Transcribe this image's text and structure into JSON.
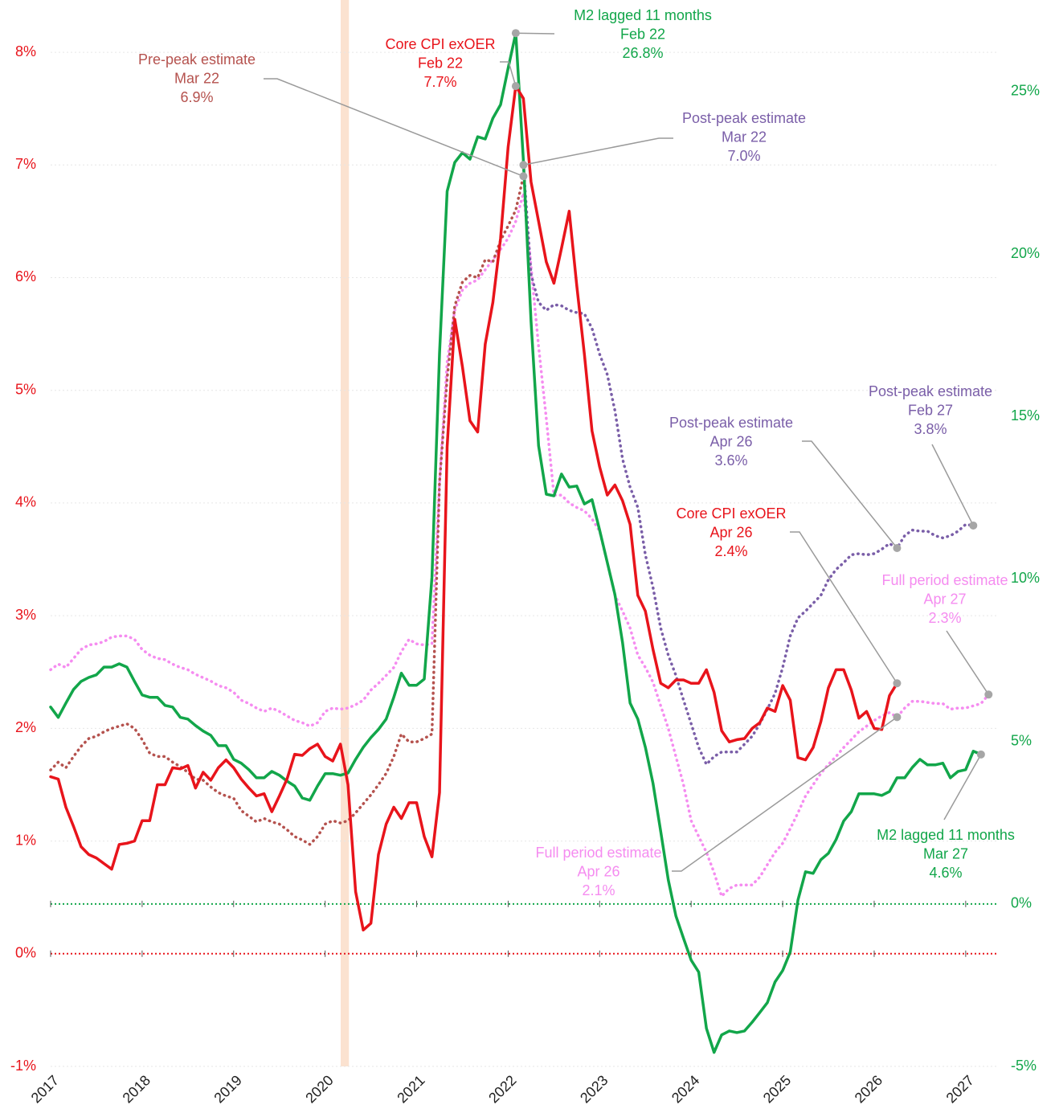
{
  "chart_data": {
    "type": "line",
    "x": [
      2017,
      2017.083,
      2017.167,
      2017.25,
      2017.333,
      2017.417,
      2017.5,
      2017.583,
      2017.667,
      2017.75,
      2017.833,
      2017.917,
      2018,
      2018.083,
      2018.167,
      2018.25,
      2018.333,
      2018.417,
      2018.5,
      2018.583,
      2018.667,
      2018.75,
      2018.833,
      2018.917,
      2019,
      2019.083,
      2019.167,
      2019.25,
      2019.333,
      2019.417,
      2019.5,
      2019.583,
      2019.667,
      2019.75,
      2019.833,
      2019.917,
      2020,
      2020.083,
      2020.167,
      2020.25,
      2020.333,
      2020.417,
      2020.5,
      2020.583,
      2020.667,
      2020.75,
      2020.833,
      2020.917,
      2021,
      2021.083,
      2021.167,
      2021.25,
      2021.333,
      2021.417,
      2021.5,
      2021.583,
      2021.667,
      2021.75,
      2021.833,
      2021.917,
      2022,
      2022.083,
      2022.167,
      2022.25,
      2022.333,
      2022.417,
      2022.5,
      2022.583,
      2022.667,
      2022.75,
      2022.833,
      2022.917,
      2023,
      2023.083,
      2023.167,
      2023.25,
      2023.333,
      2023.417,
      2023.5,
      2023.583,
      2023.667,
      2023.75,
      2023.833,
      2023.917,
      2024,
      2024.083,
      2024.167,
      2024.25,
      2024.333,
      2024.417,
      2024.5,
      2024.583,
      2024.667,
      2024.75,
      2024.833,
      2024.917,
      2025,
      2025.083,
      2025.167,
      2025.25,
      2025.333,
      2025.417,
      2025.5,
      2025.583,
      2025.667,
      2025.75,
      2025.833,
      2025.917,
      2026,
      2026.083,
      2026.167,
      2026.25,
      2026.333,
      2026.417,
      2026.5,
      2026.583,
      2026.667,
      2026.75,
      2026.833,
      2026.917,
      2027,
      2027.083,
      2027.167,
      2027.25
    ],
    "xlim": [
      2017,
      2027.3
    ],
    "xticks": [
      2017,
      2018,
      2019,
      2020,
      2021,
      2022,
      2023,
      2024,
      2025,
      2026,
      2027
    ],
    "ylim": [
      -1,
      8.3
    ],
    "yticks": [
      {
        "value": -1,
        "label": "-1%"
      },
      {
        "value": 0,
        "label": "0%"
      },
      {
        "value": 1,
        "label": "1%"
      },
      {
        "value": 2,
        "label": "2%"
      },
      {
        "value": 3,
        "label": "3%"
      },
      {
        "value": 4,
        "label": "4%"
      },
      {
        "value": 5,
        "label": "5%"
      },
      {
        "value": 6,
        "label": "6%"
      },
      {
        "value": 7,
        "label": "7%"
      },
      {
        "value": 8,
        "label": "8%"
      }
    ],
    "y2lim": [
      -5,
      27.25
    ],
    "y2ticks": [
      {
        "value": -5,
        "label": "-5%"
      },
      {
        "value": 0,
        "label": "0%"
      },
      {
        "value": 5,
        "label": "5%"
      },
      {
        "value": 10,
        "label": "10%"
      },
      {
        "value": 15,
        "label": "15%"
      },
      {
        "value": 20,
        "label": "20%"
      },
      {
        "value": 25,
        "label": "25%"
      }
    ],
    "ycolor": "#e8141b",
    "y2color": "#12a64a",
    "grid": true,
    "zero_lines": true,
    "shaded_xrange": [
      2020.17,
      2020.26
    ],
    "shaded_color": "#fbe2d0",
    "series": [
      {
        "color": "#f58cf0",
        "style": "dotted",
        "values": [
          2.52,
          2.57,
          2.54,
          2.62,
          2.7,
          2.74,
          2.75,
          2.77,
          2.81,
          2.82,
          2.82,
          2.79,
          2.7,
          2.65,
          2.62,
          2.61,
          2.57,
          2.54,
          2.52,
          2.48,
          2.45,
          2.42,
          2.38,
          2.36,
          2.32,
          2.25,
          2.22,
          2.18,
          2.15,
          2.18,
          2.15,
          2.11,
          2.07,
          2.05,
          2.02,
          2.05,
          2.15,
          2.18,
          2.17,
          2.18,
          2.21,
          2.25,
          2.34,
          2.4,
          2.47,
          2.54,
          2.68,
          2.79,
          2.75,
          2.74,
          2.75,
          4.18,
          5.25,
          5.71,
          5.89,
          5.95,
          5.98,
          6.07,
          6.16,
          6.25,
          6.35,
          6.5,
          6.75,
          6.1,
          5.39,
          4.75,
          4.07,
          4.07,
          4.0,
          3.96,
          3.93,
          3.86,
          3.75,
          3.47,
          3.18,
          3.04,
          2.89,
          2.65,
          2.54,
          2.41,
          2.2,
          2.0,
          1.75,
          1.5,
          1.18,
          1.04,
          0.9,
          0.72,
          0.51,
          0.58,
          0.61,
          0.61,
          0.61,
          0.68,
          0.79,
          0.9,
          0.98,
          1.11,
          1.25,
          1.4,
          1.5,
          1.6,
          1.68,
          1.75,
          1.83,
          1.9,
          1.97,
          2.02,
          2.07,
          2.11,
          2.14,
          2.1,
          2.18,
          2.24,
          2.24,
          2.23,
          2.22,
          2.22,
          2.17,
          2.18,
          2.18,
          2.2,
          2.22,
          2.3
        ]
      },
      {
        "color": "#b5524e",
        "style": "dotted",
        "values": [
          1.63,
          1.7,
          1.65,
          1.75,
          1.84,
          1.91,
          1.93,
          1.97,
          2.0,
          2.02,
          2.04,
          2.0,
          1.9,
          1.78,
          1.75,
          1.75,
          1.7,
          1.66,
          1.61,
          1.55,
          1.54,
          1.48,
          1.43,
          1.4,
          1.38,
          1.27,
          1.22,
          1.17,
          1.2,
          1.17,
          1.15,
          1.1,
          1.04,
          1.01,
          0.97,
          1.04,
          1.15,
          1.18,
          1.16,
          1.18,
          1.25,
          1.33,
          1.41,
          1.5,
          1.6,
          1.75,
          1.95,
          1.88,
          1.88,
          1.91,
          1.95,
          4.18,
          5.11,
          5.75,
          5.96,
          6.02,
          6.0,
          6.16,
          6.14,
          6.33,
          6.46,
          6.6,
          6.9,
          null,
          null,
          null,
          null,
          null,
          null,
          null,
          null,
          null,
          null,
          null,
          null,
          null,
          null,
          null,
          null,
          null,
          null,
          null,
          null,
          null,
          null,
          null,
          null,
          null,
          null,
          null,
          null,
          null,
          null,
          null,
          null,
          null,
          null,
          null,
          null,
          null,
          null,
          null,
          null,
          null,
          null,
          null,
          null,
          null,
          null,
          null,
          null,
          null,
          null,
          null,
          null,
          null,
          null,
          null,
          null,
          null,
          null,
          null,
          null,
          null
        ]
      },
      {
        "color": "#7a5ea8",
        "style": "dotted",
        "values": [
          null,
          null,
          null,
          null,
          null,
          null,
          null,
          null,
          null,
          null,
          null,
          null,
          null,
          null,
          null,
          null,
          null,
          null,
          null,
          null,
          null,
          null,
          null,
          null,
          null,
          null,
          null,
          null,
          null,
          null,
          null,
          null,
          null,
          null,
          null,
          null,
          null,
          null,
          null,
          null,
          null,
          null,
          null,
          null,
          null,
          null,
          null,
          null,
          null,
          null,
          null,
          null,
          null,
          null,
          null,
          null,
          null,
          null,
          null,
          null,
          null,
          null,
          7.0,
          6.03,
          5.78,
          5.71,
          5.76,
          5.75,
          5.71,
          5.69,
          5.68,
          5.55,
          5.32,
          5.14,
          4.82,
          4.39,
          4.14,
          3.96,
          3.54,
          3.25,
          2.89,
          2.65,
          2.47,
          2.25,
          2.04,
          1.83,
          1.68,
          1.75,
          1.79,
          1.79,
          1.79,
          1.86,
          1.93,
          2.04,
          2.17,
          2.31,
          2.54,
          2.82,
          2.98,
          3.04,
          3.11,
          3.18,
          3.32,
          3.41,
          3.47,
          3.54,
          3.55,
          3.54,
          3.55,
          3.59,
          3.64,
          3.6,
          3.71,
          3.76,
          3.75,
          3.75,
          3.71,
          3.69,
          3.71,
          3.75,
          3.81,
          3.8,
          null,
          null
        ]
      },
      {
        "color": "#12a64a",
        "style": "solid",
        "axis": "y2",
        "values": [
          6.06,
          5.74,
          6.18,
          6.6,
          6.85,
          6.97,
          7.05,
          7.29,
          7.29,
          7.39,
          7.29,
          6.85,
          6.43,
          6.36,
          6.36,
          6.11,
          6.06,
          5.74,
          5.69,
          5.49,
          5.32,
          5.19,
          4.87,
          4.87,
          4.45,
          4.33,
          4.13,
          3.88,
          3.88,
          4.08,
          3.96,
          3.78,
          3.63,
          3.26,
          3.19,
          3.63,
          4.01,
          4.01,
          3.96,
          4.03,
          4.45,
          4.82,
          5.12,
          5.37,
          5.69,
          6.36,
          7.1,
          6.73,
          6.73,
          6.92,
          10.06,
          16.94,
          21.93,
          22.82,
          23.12,
          22.92,
          23.61,
          23.54,
          24.18,
          24.6,
          25.72,
          26.8,
          22.87,
          17.93,
          14.1,
          12.61,
          12.56,
          13.23,
          12.83,
          12.86,
          12.31,
          12.44,
          11.5,
          10.51,
          9.52,
          8.04,
          6.18,
          5.69,
          4.82,
          3.71,
          2.23,
          0.74,
          -0.37,
          -1.06,
          -1.73,
          -2.1,
          -3.83,
          -4.57,
          -4.03,
          -3.91,
          -3.96,
          -3.91,
          -3.64,
          -3.34,
          -3.04,
          -2.4,
          -2.05,
          -1.48,
          0.12,
          0.99,
          0.94,
          1.36,
          1.56,
          1.98,
          2.55,
          2.84,
          3.39,
          3.39,
          3.39,
          3.34,
          3.46,
          3.88,
          3.88,
          4.2,
          4.45,
          4.28,
          4.28,
          4.33,
          3.88,
          4.08,
          4.13,
          4.7,
          4.6,
          null
        ]
      },
      {
        "color": "#e8141b",
        "style": "solid",
        "values": [
          1.57,
          1.55,
          1.3,
          1.13,
          0.95,
          0.88,
          0.85,
          0.8,
          0.75,
          0.97,
          0.98,
          1.0,
          1.18,
          1.18,
          1.5,
          1.5,
          1.65,
          1.64,
          1.67,
          1.47,
          1.61,
          1.54,
          1.65,
          1.72,
          1.65,
          1.55,
          1.47,
          1.4,
          1.42,
          1.26,
          1.4,
          1.55,
          1.77,
          1.76,
          1.82,
          1.86,
          1.75,
          1.71,
          1.86,
          1.5,
          0.55,
          0.21,
          0.27,
          0.88,
          1.15,
          1.3,
          1.2,
          1.34,
          1.34,
          1.04,
          0.86,
          1.43,
          4.5,
          5.63,
          5.21,
          4.73,
          4.63,
          5.41,
          5.78,
          6.35,
          7.16,
          7.7,
          7.59,
          6.85,
          6.5,
          6.14,
          5.95,
          6.26,
          6.59,
          5.93,
          5.32,
          4.64,
          4.32,
          4.07,
          4.16,
          4.02,
          3.81,
          3.18,
          3.04,
          2.7,
          2.4,
          2.36,
          2.43,
          2.43,
          2.4,
          2.4,
          2.52,
          2.32,
          1.98,
          1.88,
          1.9,
          1.91,
          2.0,
          2.05,
          2.18,
          2.15,
          2.38,
          2.25,
          1.74,
          1.72,
          1.83,
          2.06,
          2.36,
          2.52,
          2.52,
          2.34,
          2.09,
          2.15,
          2.0,
          1.99,
          2.29,
          2.4,
          null,
          null,
          null,
          null,
          null,
          null,
          null,
          null,
          null,
          null,
          null,
          null
        ]
      }
    ],
    "annotations": [
      [
        "M2 lagged 11 months",
        "Feb 22",
        "26.8%"
      ],
      [
        "Core CPI exOER",
        "Feb 22",
        "7.7%"
      ],
      [
        "Pre-peak estimate",
        "Mar 22",
        "6.9%"
      ],
      [
        "Post-peak estimate",
        "Mar 22",
        "7.0%"
      ],
      [
        "Post-peak estimate",
        "Apr 26",
        "3.6%"
      ],
      [
        "Post-peak estimate",
        "Feb 27",
        "3.8%"
      ],
      [
        "Core CPI exOER",
        "Apr 26",
        "2.4%"
      ],
      [
        "Full period estimate",
        "Apr 27",
        "2.3%"
      ],
      [
        "Full period estimate",
        "Apr 26",
        "2.1%"
      ],
      [
        "M2 lagged 11 months",
        "Mar 27",
        "4.6%"
      ]
    ]
  }
}
